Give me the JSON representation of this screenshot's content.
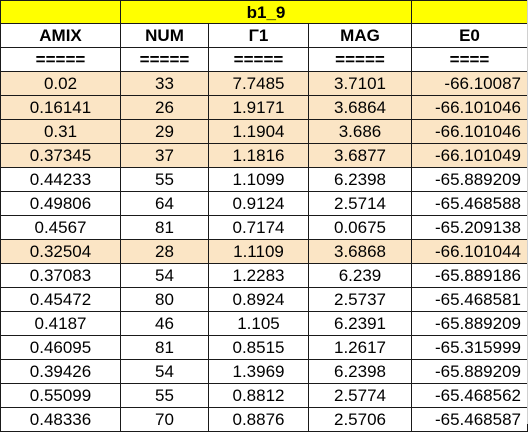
{
  "title": "b1_9",
  "headers": [
    "AMIX",
    "NUM",
    "Γ1",
    "MAG",
    "E0"
  ],
  "separators": [
    "=====",
    "=====",
    "=====",
    "=====",
    "===="
  ],
  "colors": {
    "title_bg": "#ffff00",
    "highlight_bg": "#fbe5c5",
    "border": "#1a1a1a"
  },
  "rows": [
    {
      "AMIX": "0.02",
      "NUM": "33",
      "G1": "7.7485",
      "MAG": "3.7101",
      "E0": "-66.10087",
      "highlighted": true
    },
    {
      "AMIX": "0.16141",
      "NUM": "26",
      "G1": "1.9171",
      "MAG": "3.6864",
      "E0": "-66.101046",
      "highlighted": true
    },
    {
      "AMIX": "0.31",
      "NUM": "29",
      "G1": "1.1904",
      "MAG": "3.686",
      "E0": "-66.101046",
      "highlighted": true
    },
    {
      "AMIX": "0.37345",
      "NUM": "37",
      "G1": "1.1816",
      "MAG": "3.6877",
      "E0": "-66.101049",
      "highlighted": true
    },
    {
      "AMIX": "0.44233",
      "NUM": "55",
      "G1": "1.1099",
      "MAG": "6.2398",
      "E0": "-65.889209",
      "highlighted": false
    },
    {
      "AMIX": "0.49806",
      "NUM": "64",
      "G1": "0.9124",
      "MAG": "2.5714",
      "E0": "-65.468588",
      "highlighted": false
    },
    {
      "AMIX": "0.4567",
      "NUM": "81",
      "G1": "0.7174",
      "MAG": "0.0675",
      "E0": "-65.209138",
      "highlighted": false
    },
    {
      "AMIX": "0.32504",
      "NUM": "28",
      "G1": "1.1109",
      "MAG": "3.6868",
      "E0": "-66.101044",
      "highlighted": true
    },
    {
      "AMIX": "0.37083",
      "NUM": "54",
      "G1": "1.2283",
      "MAG": "6.239",
      "E0": "-65.889186",
      "highlighted": false
    },
    {
      "AMIX": "0.45472",
      "NUM": "80",
      "G1": "0.8924",
      "MAG": "2.5737",
      "E0": "-65.468581",
      "highlighted": false
    },
    {
      "AMIX": "0.4187",
      "NUM": "46",
      "G1": "1.105",
      "MAG": "6.2391",
      "E0": "-65.889209",
      "highlighted": false
    },
    {
      "AMIX": "0.46095",
      "NUM": "81",
      "G1": "0.8515",
      "MAG": "1.2617",
      "E0": "-65.315999",
      "highlighted": false
    },
    {
      "AMIX": "0.39426",
      "NUM": "54",
      "G1": "1.3969",
      "MAG": "6.2398",
      "E0": "-65.889209",
      "highlighted": false
    },
    {
      "AMIX": "0.55099",
      "NUM": "55",
      "G1": "0.8812",
      "MAG": "2.5774",
      "E0": "-65.468562",
      "highlighted": false
    },
    {
      "AMIX": "0.48336",
      "NUM": "70",
      "G1": "0.8876",
      "MAG": "2.5706",
      "E0": "-65.468587",
      "highlighted": false
    }
  ]
}
